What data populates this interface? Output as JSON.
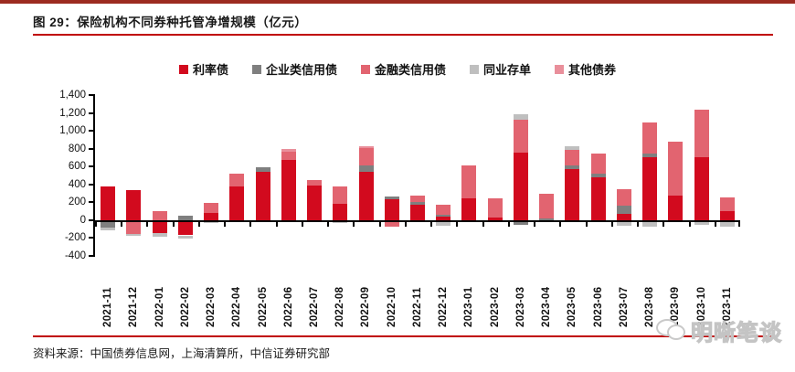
{
  "header": {
    "figure_title": "图 29：保险机构不同券种托管净增规模（亿元）"
  },
  "footer": {
    "source": "资料来源：中国债券信息网，上海清算所，中信证券研究部"
  },
  "watermark": {
    "text": "明晰笔谈"
  },
  "colors": {
    "top_rule": "#9c2b21",
    "red_rule": "#c00000",
    "axis": "#000000"
  },
  "chart_data": {
    "type": "bar",
    "stacked": true,
    "unit": "亿元",
    "title": "保险机构不同券种托管净增规模（亿元）",
    "xlabel": "",
    "ylabel": "",
    "ylim": [
      -400,
      1400
    ],
    "ytick_step": 200,
    "ytick_labels": [
      "1,400",
      "1,200",
      "1,000",
      "800",
      "600",
      "400",
      "200",
      "0",
      "-200",
      "-400"
    ],
    "grid": false,
    "legend_position": "top",
    "categories": [
      "2021-11",
      "2021-12",
      "2022-01",
      "2022-02",
      "2022-03",
      "2022-04",
      "2022-05",
      "2022-06",
      "2022-07",
      "2022-08",
      "2022-09",
      "2022-10",
      "2022-11",
      "2022-12",
      "2023-01",
      "2023-02",
      "2023-03",
      "2023-04",
      "2023-05",
      "2023-06",
      "2023-07",
      "2023-08",
      "2023-09",
      "2023-10",
      "2023-11"
    ],
    "series": [
      {
        "name": "利率债",
        "color": "#d20a1e",
        "values": [
          380,
          340,
          -140,
          -170,
          80,
          380,
          540,
          670,
          390,
          180,
          540,
          230,
          170,
          40,
          240,
          30,
          760,
          0,
          570,
          480,
          70,
          700,
          280,
          705,
          100
        ]
      },
      {
        "name": "企业类信用债",
        "color": "#7f7f7f",
        "values": [
          -80,
          0,
          0,
          50,
          0,
          0,
          50,
          0,
          0,
          0,
          70,
          30,
          30,
          20,
          0,
          0,
          -50,
          20,
          40,
          40,
          90,
          45,
          0,
          0,
          0
        ]
      },
      {
        "name": "金融类信用债",
        "color": "#e26470",
        "values": [
          0,
          -150,
          100,
          0,
          110,
          140,
          0,
          100,
          60,
          200,
          195,
          -70,
          80,
          110,
          370,
          210,
          365,
          280,
          180,
          230,
          185,
          350,
          600,
          530,
          150
        ]
      },
      {
        "name": "同业存单",
        "color": "#bfbfbf",
        "values": [
          -30,
          -20,
          -50,
          -40,
          -30,
          0,
          0,
          0,
          0,
          -30,
          0,
          0,
          0,
          -60,
          0,
          0,
          60,
          0,
          40,
          0,
          -60,
          -70,
          0,
          -50,
          -70
        ]
      },
      {
        "name": "其他债券",
        "color": "#e98f9b",
        "values": [
          0,
          0,
          0,
          0,
          0,
          0,
          0,
          25,
          0,
          0,
          25,
          0,
          0,
          0,
          0,
          0,
          0,
          0,
          0,
          0,
          0,
          0,
          0,
          0,
          0
        ]
      }
    ]
  }
}
